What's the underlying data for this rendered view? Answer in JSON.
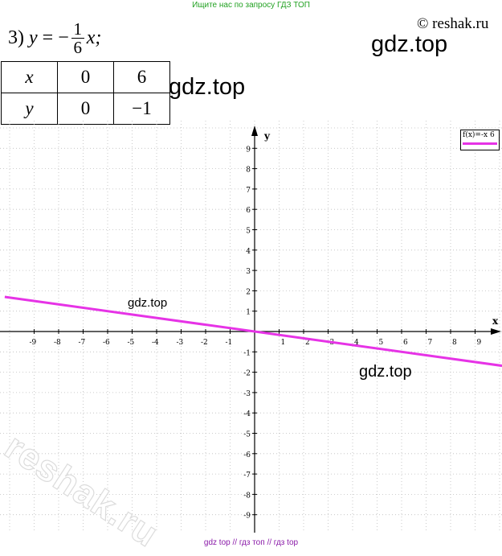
{
  "header": {
    "banner": "Ищите нас по запросу ГДЗ ТОП",
    "copyright": "© reshak.ru"
  },
  "problem": {
    "number": "3)",
    "lhs": "y",
    "equals": "= −",
    "numerator": "1",
    "denominator": "6",
    "variable": "x;"
  },
  "table": {
    "rows": [
      {
        "label": "x",
        "values": [
          "0",
          "6"
        ]
      },
      {
        "label": "y",
        "values": [
          "0",
          "−1"
        ]
      }
    ]
  },
  "watermarks": {
    "large_1": "gdz.top",
    "large_2": "gdz.top",
    "small_graph": "gdz.top",
    "medium_graph": "gdz.top",
    "diagonal": "reshak.ru"
  },
  "footer": "gdz top  //  гдз топ  //  гдз top",
  "chart_data": {
    "type": "line",
    "xlabel": "x",
    "ylabel": "y",
    "xlim": [
      -10.2,
      10.1
    ],
    "ylim": [
      -9.9,
      9.9
    ],
    "x_ticks": [
      -9,
      -8,
      -7,
      -6,
      -5,
      -4,
      -3,
      -2,
      -1,
      1,
      2,
      3,
      4,
      5,
      6,
      7,
      8,
      9
    ],
    "y_ticks": [
      -9,
      -8,
      -7,
      -6,
      -5,
      -4,
      -3,
      -2,
      -1,
      1,
      2,
      3,
      4,
      5,
      6,
      7,
      8,
      9
    ],
    "grid": true,
    "legend_position": "top-right",
    "series": [
      {
        "name": "f(x)=-x 6",
        "x": [
          -10.2,
          10.1
        ],
        "y": [
          1.7,
          -1.683
        ],
        "color": "#e633e6"
      }
    ]
  }
}
